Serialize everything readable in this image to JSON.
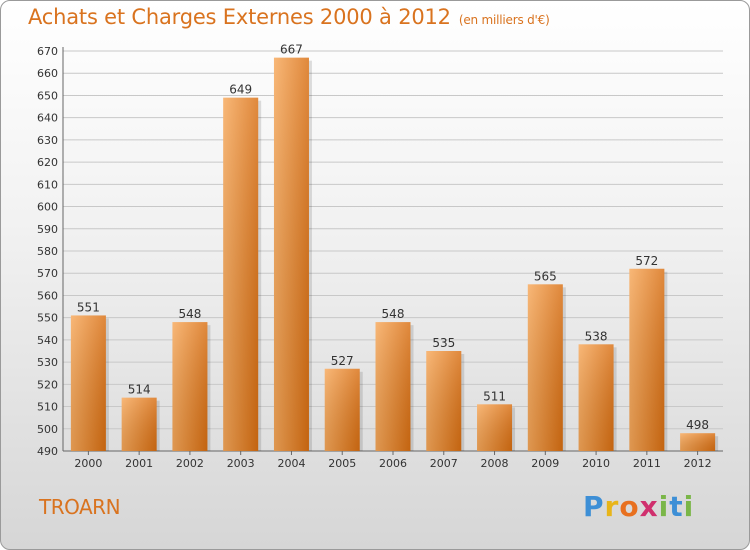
{
  "title": "Achats et Charges Externes 2000 à 2012",
  "unit_note": "(en milliers d'€)",
  "commune": "TROARN",
  "logo": {
    "letters": [
      "P",
      "r",
      "o",
      "x",
      "i",
      "t",
      "i"
    ],
    "colors": [
      "#3d8fd6",
      "#e8b51a",
      "#e8701f",
      "#d0306e",
      "#7ab648",
      "#3d8fd6",
      "#7ab648"
    ]
  },
  "colors": {
    "accent": "#d9731f",
    "bar_light": "#f7a85a",
    "bar_dark": "#d96f12"
  },
  "chart_data": {
    "type": "bar",
    "title": "Achats et Charges Externes 2000 à 2012",
    "subtitle": "(en milliers d'€)",
    "categories": [
      "2000",
      "2001",
      "2002",
      "2003",
      "2004",
      "2005",
      "2006",
      "2007",
      "2008",
      "2009",
      "2010",
      "2011",
      "2012"
    ],
    "values": [
      551,
      514,
      548,
      649,
      667,
      527,
      548,
      535,
      511,
      565,
      538,
      572,
      498
    ],
    "ylim": [
      490,
      670
    ],
    "yticks": [
      490,
      500,
      510,
      520,
      530,
      540,
      550,
      560,
      570,
      580,
      590,
      600,
      610,
      620,
      630,
      640,
      650,
      660,
      670
    ],
    "grid": true,
    "xlabel": "",
    "ylabel": ""
  }
}
